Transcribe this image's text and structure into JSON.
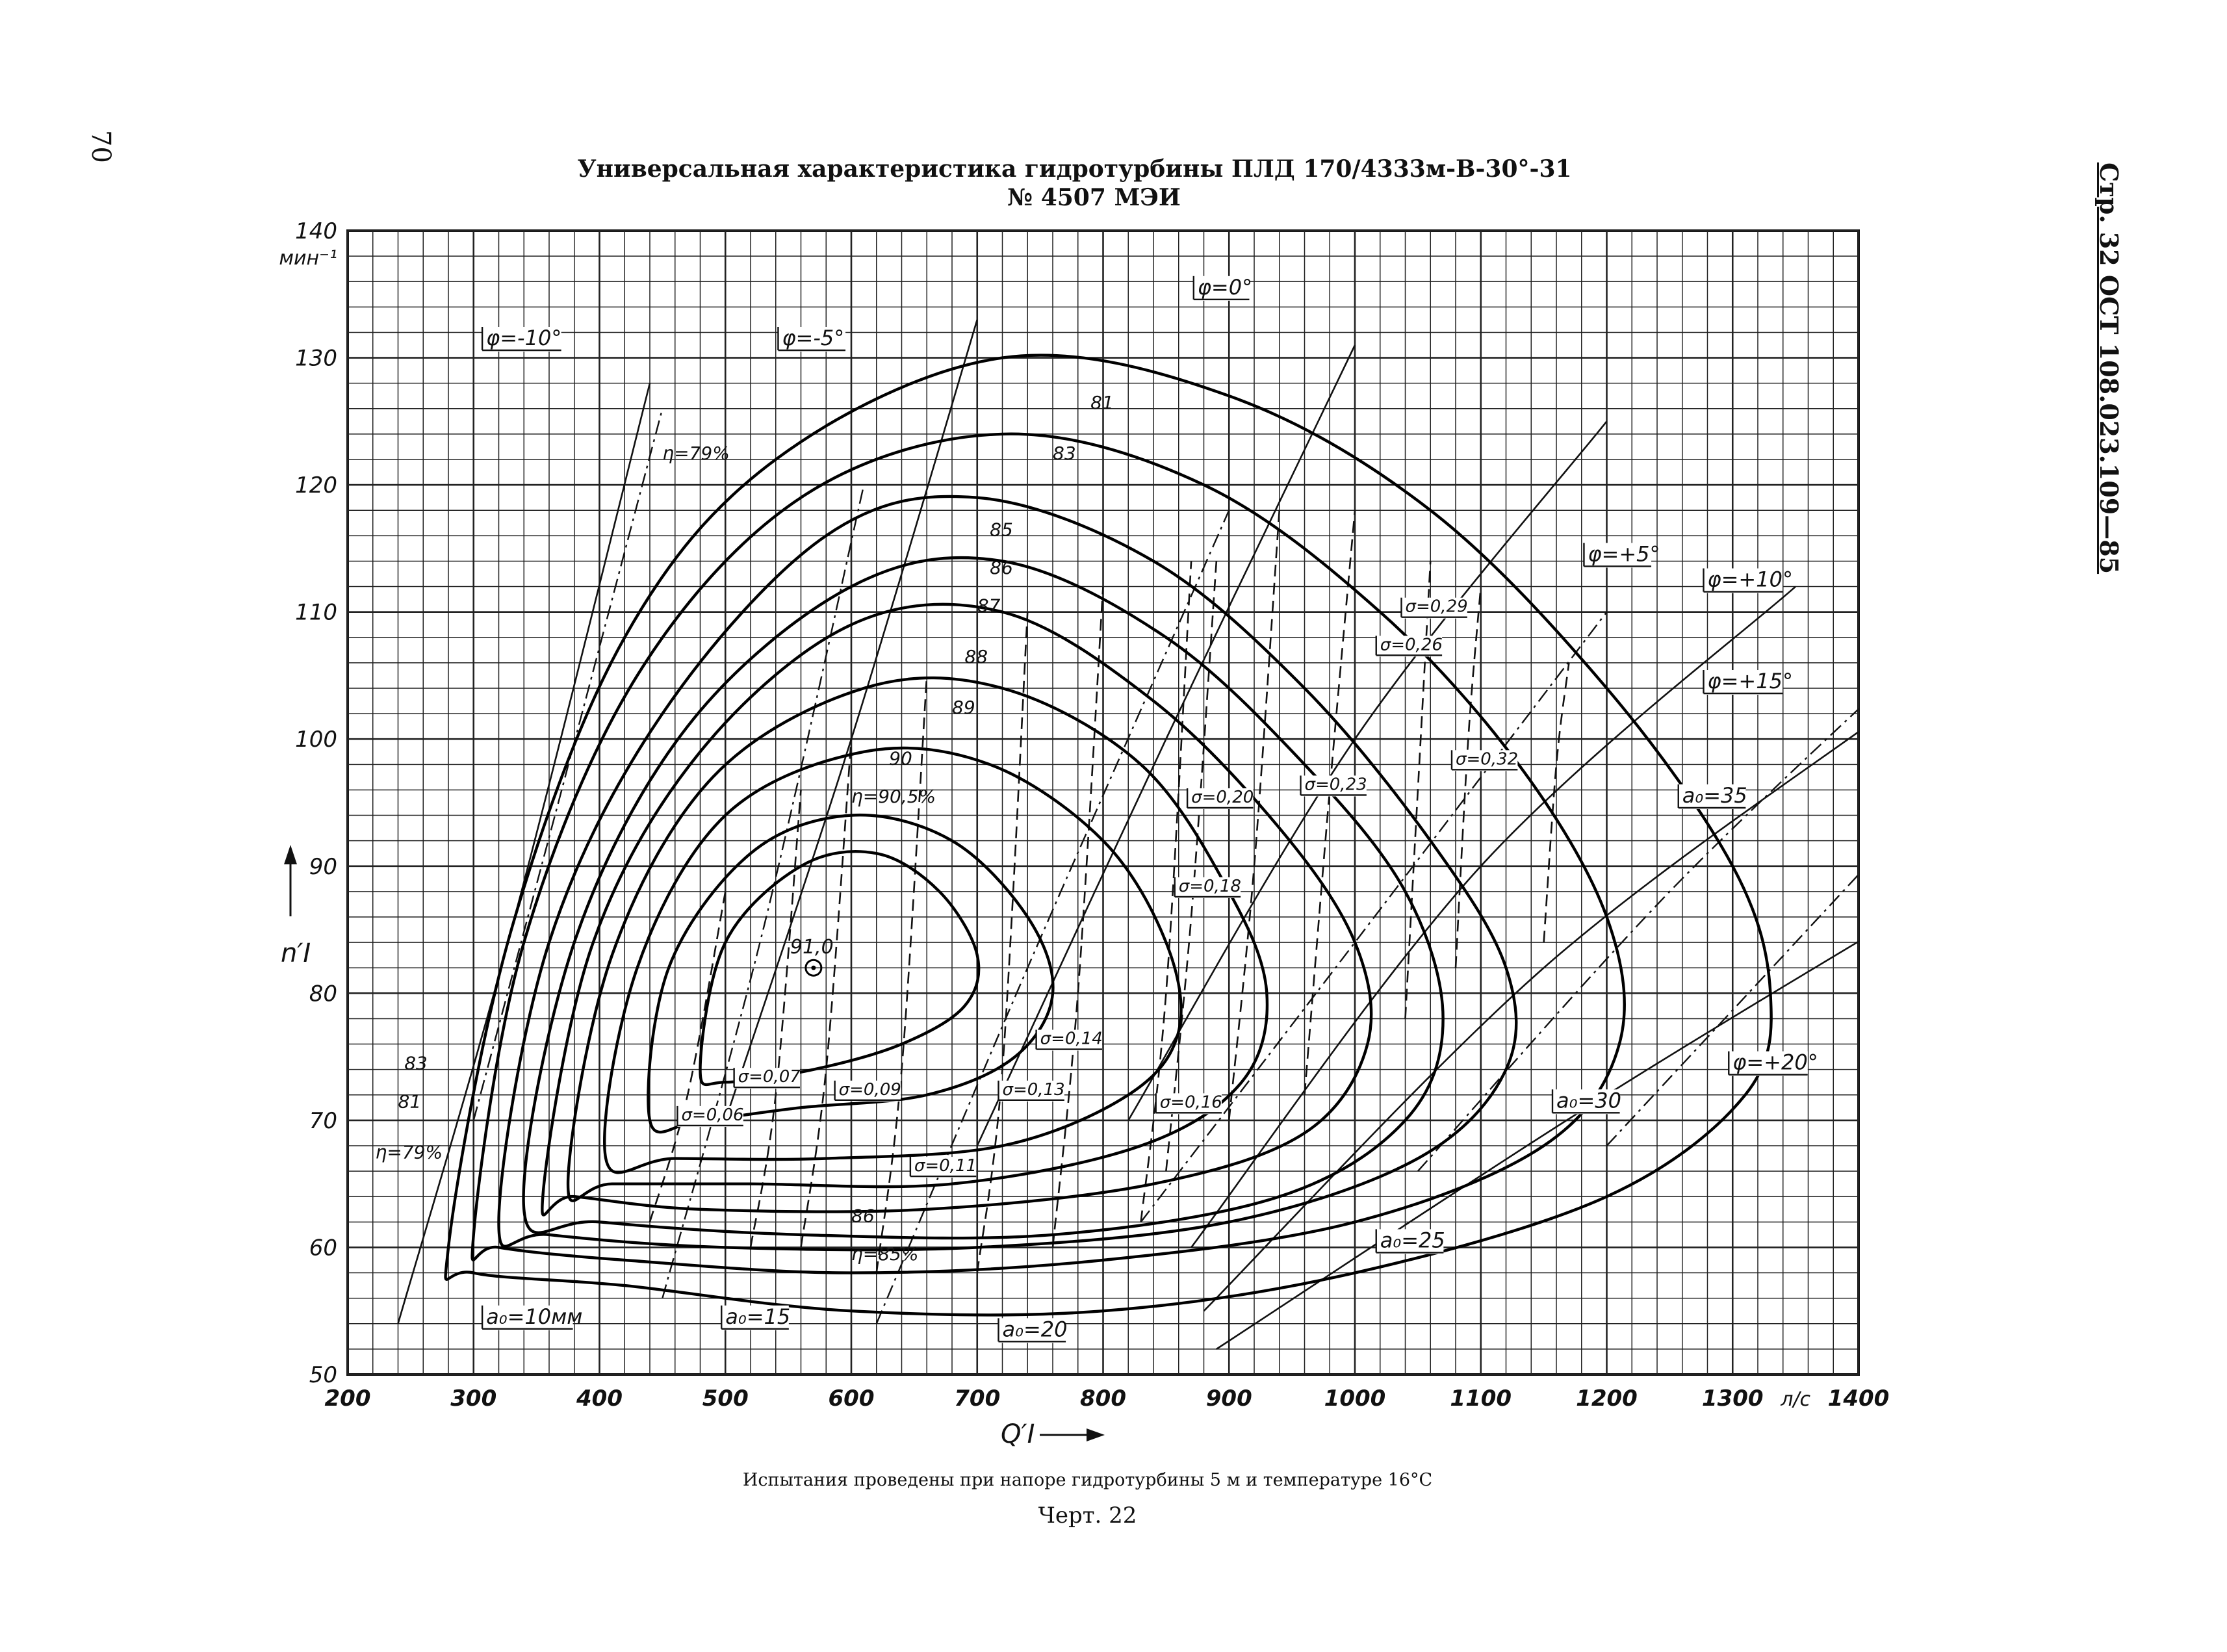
{
  "page": {
    "page_number": "70",
    "side_code": "Стр. 32 ОСТ 108.023.109—85",
    "title_line1": "Универсальная характеристика гидротурбины ПЛД 170/4333м-В-30°-31",
    "title_line2": "№ 4507 МЭИ",
    "caption": "Испытания проведены при напоре гидротурбины 5 м и температуре 16°С",
    "chart_number": "Черт. 22"
  },
  "chart_data": {
    "type": "line",
    "ylabel": "n′I",
    "yunit": "мин⁻¹",
    "xlabel": "Q′I",
    "xunit": "л/с",
    "xlim": [
      200,
      1400
    ],
    "ylim": [
      50,
      140
    ],
    "x_ticks": [
      200,
      300,
      400,
      500,
      600,
      700,
      800,
      900,
      1000,
      1100,
      1200,
      1300,
      1400
    ],
    "y_ticks": [
      50,
      60,
      70,
      80,
      90,
      100,
      110,
      120,
      130,
      140
    ],
    "grid": true,
    "optimum": {
      "label": "91,0",
      "x": 570,
      "y": 82
    },
    "efficiency_series": [
      {
        "name": "81",
        "values": [
          [
            280,
            60
          ],
          [
            330,
            85
          ],
          [
            420,
            108
          ],
          [
            540,
            122
          ],
          [
            720,
            130
          ],
          [
            900,
            127
          ],
          [
            1060,
            118
          ],
          [
            1200,
            104
          ],
          [
            1300,
            90
          ],
          [
            1330,
            80
          ],
          [
            1310,
            72
          ],
          [
            1200,
            64
          ],
          [
            1000,
            58
          ],
          [
            800,
            55
          ],
          [
            600,
            55
          ],
          [
            420,
            57
          ],
          [
            300,
            58
          ],
          [
            280,
            60
          ]
        ]
      },
      {
        "name": "83",
        "values": [
          [
            300,
            61
          ],
          [
            340,
            84
          ],
          [
            430,
            105
          ],
          [
            560,
            119
          ],
          [
            720,
            124
          ],
          [
            880,
            120
          ],
          [
            1020,
            110
          ],
          [
            1130,
            98
          ],
          [
            1200,
            86
          ],
          [
            1210,
            76
          ],
          [
            1150,
            68
          ],
          [
            1000,
            62
          ],
          [
            800,
            59
          ],
          [
            600,
            58
          ],
          [
            420,
            59
          ],
          [
            320,
            60
          ],
          [
            300,
            61
          ]
        ]
      },
      {
        "name": "85",
        "values": [
          [
            320,
            62
          ],
          [
            360,
            84
          ],
          [
            450,
            102
          ],
          [
            580,
            116
          ],
          [
            700,
            119
          ],
          [
            840,
            114
          ],
          [
            960,
            104
          ],
          [
            1060,
            92
          ],
          [
            1120,
            82
          ],
          [
            1120,
            74
          ],
          [
            1050,
            67
          ],
          [
            900,
            62
          ],
          [
            700,
            60
          ],
          [
            500,
            60
          ],
          [
            360,
            61
          ],
          [
            320,
            62
          ]
        ]
      },
      {
        "name": "86",
        "values": [
          [
            340,
            63
          ],
          [
            380,
            84
          ],
          [
            470,
            101
          ],
          [
            600,
            112
          ],
          [
            720,
            114
          ],
          [
            850,
            108
          ],
          [
            960,
            98
          ],
          [
            1040,
            88
          ],
          [
            1070,
            78
          ],
          [
            1040,
            70
          ],
          [
            940,
            64
          ],
          [
            760,
            61
          ],
          [
            560,
            61
          ],
          [
            400,
            62
          ],
          [
            340,
            63
          ]
        ]
      },
      {
        "name": "87",
        "values": [
          [
            355,
            64
          ],
          [
            395,
            84
          ],
          [
            480,
            99
          ],
          [
            600,
            109
          ],
          [
            720,
            110
          ],
          [
            840,
            103
          ],
          [
            940,
            93
          ],
          [
            1000,
            84
          ],
          [
            1010,
            76
          ],
          [
            960,
            69
          ],
          [
            840,
            65
          ],
          [
            660,
            63
          ],
          [
            480,
            63
          ],
          [
            380,
            64
          ],
          [
            355,
            64
          ]
        ]
      },
      {
        "name": "88",
        "values": [
          [
            375,
            65
          ],
          [
            410,
            83
          ],
          [
            490,
            97
          ],
          [
            610,
            104
          ],
          [
            720,
            104
          ],
          [
            830,
            98
          ],
          [
            900,
            88
          ],
          [
            930,
            80
          ],
          [
            910,
            73
          ],
          [
            830,
            68
          ],
          [
            680,
            65
          ],
          [
            520,
            65
          ],
          [
            410,
            65
          ],
          [
            375,
            65
          ]
        ]
      },
      {
        "name": "89",
        "values": [
          [
            405,
            67
          ],
          [
            430,
            82
          ],
          [
            500,
            94
          ],
          [
            610,
            99
          ],
          [
            710,
            98
          ],
          [
            800,
            92
          ],
          [
            850,
            84
          ],
          [
            860,
            77
          ],
          [
            820,
            72
          ],
          [
            720,
            68
          ],
          [
            580,
            67
          ],
          [
            460,
            67
          ],
          [
            405,
            67
          ]
        ]
      },
      {
        "name": "90",
        "values": [
          [
            440,
            70
          ],
          [
            455,
            82
          ],
          [
            520,
            91
          ],
          [
            600,
            94
          ],
          [
            680,
            92
          ],
          [
            740,
            86
          ],
          [
            760,
            80
          ],
          [
            730,
            75
          ],
          [
            660,
            72
          ],
          [
            560,
            71
          ],
          [
            480,
            70
          ],
          [
            440,
            70
          ]
        ]
      },
      {
        "name": "90,5",
        "values": [
          [
            480,
            74
          ],
          [
            500,
            84
          ],
          [
            560,
            90
          ],
          [
            620,
            91
          ],
          [
            670,
            88
          ],
          [
            700,
            83
          ],
          [
            690,
            79
          ],
          [
            640,
            76
          ],
          [
            570,
            74
          ],
          [
            500,
            73
          ],
          [
            480,
            74
          ]
        ]
      }
    ],
    "efficiency_labels": [
      "81",
      "83",
      "85",
      "86",
      "87",
      "88",
      "89",
      "90",
      "η=90,5%",
      "η=79%",
      "η=85%",
      "86",
      "83",
      "81",
      "η=79%"
    ],
    "phi_series": [
      {
        "name": "φ=-10°",
        "values": [
          [
            240,
            54
          ],
          [
            330,
            85
          ],
          [
            440,
            128
          ]
        ]
      },
      {
        "name": "φ=-5°",
        "values": [
          [
            500,
            70
          ],
          [
            600,
            100
          ],
          [
            700,
            133
          ]
        ]
      },
      {
        "name": "φ=0°",
        "values": [
          [
            700,
            68
          ],
          [
            850,
            100
          ],
          [
            1000,
            131
          ]
        ]
      },
      {
        "name": "φ=+5°",
        "values": [
          [
            820,
            70
          ],
          [
            1000,
            100
          ],
          [
            1200,
            125
          ]
        ]
      },
      {
        "name": "φ=+10°",
        "values": [
          [
            870,
            60
          ],
          [
            1100,
            90
          ],
          [
            1350,
            112
          ]
        ]
      },
      {
        "name": "φ=+15°",
        "values": [
          [
            880,
            55
          ],
          [
            1150,
            82
          ],
          [
            1420,
            102
          ]
        ]
      },
      {
        "name": "φ=+20°",
        "values": [
          [
            890,
            52
          ],
          [
            1200,
            72
          ],
          [
            1500,
            90
          ]
        ]
      }
    ],
    "opening_series": [
      {
        "name": "a₀=10мм",
        "values": [
          [
            300,
            70
          ],
          [
            370,
            96
          ],
          [
            450,
            126
          ]
        ]
      },
      {
        "name": "a₀=15",
        "values": [
          [
            450,
            56
          ],
          [
            530,
            85
          ],
          [
            610,
            120
          ]
        ]
      },
      {
        "name": "a₀=20",
        "values": [
          [
            620,
            54
          ],
          [
            740,
            82
          ],
          [
            900,
            118
          ]
        ]
      },
      {
        "name": "a₀=25",
        "values": [
          [
            830,
            62
          ],
          [
            1000,
            84
          ],
          [
            1200,
            110
          ]
        ]
      },
      {
        "name": "a₀=30",
        "values": [
          [
            1050,
            66
          ],
          [
            1250,
            88
          ],
          [
            1450,
            107
          ]
        ]
      },
      {
        "name": "a₀=35",
        "values": [
          [
            1200,
            68
          ],
          [
            1350,
            84
          ],
          [
            1500,
            100
          ]
        ]
      }
    ],
    "cavitation_series": [
      {
        "name": "σ=0,06",
        "values": [
          [
            440,
            62
          ],
          [
            470,
            72
          ],
          [
            500,
            88
          ]
        ]
      },
      {
        "name": "σ=0,07",
        "values": [
          [
            520,
            60
          ],
          [
            540,
            72
          ],
          [
            560,
            96
          ]
        ]
      },
      {
        "name": "σ=0,09",
        "values": [
          [
            560,
            60
          ],
          [
            580,
            74
          ],
          [
            600,
            100
          ]
        ]
      },
      {
        "name": "σ=0,11",
        "values": [
          [
            620,
            58
          ],
          [
            640,
            74
          ],
          [
            660,
            105
          ]
        ]
      },
      {
        "name": "σ=0,13",
        "values": [
          [
            700,
            58
          ],
          [
            720,
            74
          ],
          [
            740,
            110
          ]
        ]
      },
      {
        "name": "σ=0,14",
        "values": [
          [
            760,
            60
          ],
          [
            780,
            80
          ],
          [
            800,
            112
          ]
        ]
      },
      {
        "name": "σ=0,16",
        "values": [
          [
            830,
            62
          ],
          [
            850,
            80
          ],
          [
            870,
            114
          ]
        ]
      },
      {
        "name": "σ=0,18",
        "values": [
          [
            850,
            66
          ],
          [
            870,
            86
          ],
          [
            890,
            114
          ]
        ]
      },
      {
        "name": "σ=0,20",
        "values": [
          [
            900,
            70
          ],
          [
            920,
            90
          ],
          [
            940,
            118
          ]
        ]
      },
      {
        "name": "σ=0,23",
        "values": [
          [
            960,
            72
          ],
          [
            980,
            96
          ],
          [
            1000,
            118
          ]
        ]
      },
      {
        "name": "σ=0,26",
        "values": [
          [
            1040,
            78
          ],
          [
            1050,
            96
          ],
          [
            1060,
            114
          ]
        ]
      },
      {
        "name": "σ=0,29",
        "values": [
          [
            1080,
            82
          ],
          [
            1090,
            100
          ],
          [
            1100,
            112
          ]
        ]
      },
      {
        "name": "σ=0,32",
        "values": [
          [
            1150,
            84
          ],
          [
            1160,
            98
          ],
          [
            1170,
            106
          ]
        ]
      }
    ]
  }
}
